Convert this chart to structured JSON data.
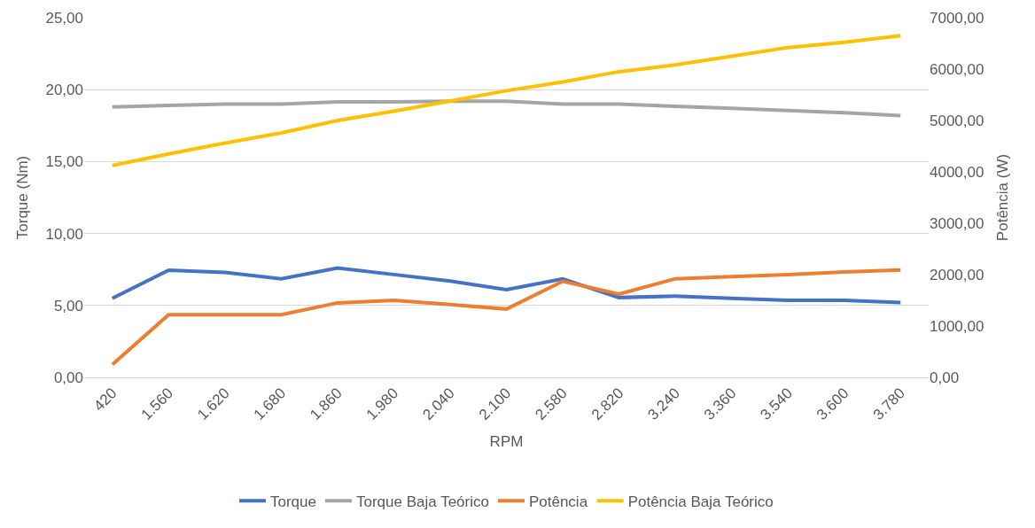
{
  "chart_data": {
    "type": "line",
    "xlabel": "RPM",
    "ylabel": "Torque (Nm)",
    "y2label": "Potência (W)",
    "categories": [
      "420",
      "1.560",
      "1.620",
      "1.680",
      "1.860",
      "1.980",
      "2.040",
      "2.100",
      "2.580",
      "2.820",
      "3.240",
      "3.360",
      "3.540",
      "3.600",
      "3.780"
    ],
    "series": [
      {
        "name": "Torque",
        "color": "#4472c4",
        "values": [
          5.5,
          7.45,
          7.3,
          6.85,
          7.6,
          7.15,
          6.7,
          6.1,
          6.85,
          5.55,
          5.65,
          5.5,
          5.35,
          5.35,
          5.2
        ]
      },
      {
        "name": "Torque Baja Teórico",
        "color": "#a5a5a5",
        "values": [
          18.8,
          18.9,
          19.0,
          19.0,
          19.15,
          19.15,
          19.2,
          19.2,
          19.0,
          19.0,
          18.85,
          18.7,
          18.55,
          18.4,
          18.2
        ]
      },
      {
        "name": "Potência",
        "color": "#ed7d31",
        "axis": "y2",
        "values": [
          250,
          1220,
          1220,
          1220,
          1450,
          1500,
          1420,
          1330,
          1870,
          1620,
          1920,
          1960,
          2000,
          2050,
          2090
        ]
      },
      {
        "name": "Potência Baja Teórico",
        "color": "#ffc000",
        "axis": "y2",
        "values": [
          4125,
          4350,
          4560,
          4760,
          5000,
          5180,
          5380,
          5580,
          5750,
          5950,
          6080,
          6250,
          6420,
          6520,
          6650
        ]
      }
    ],
    "ylim": [
      0,
      25
    ],
    "yticks": [
      {
        "value": 0,
        "label": "0,00"
      },
      {
        "value": 5,
        "label": "5,00"
      },
      {
        "value": 10,
        "label": "10,00"
      },
      {
        "value": 15,
        "label": "15,00"
      },
      {
        "value": 20,
        "label": "20,00"
      },
      {
        "value": 25,
        "label": "25,00"
      }
    ],
    "y2lim": [
      0,
      7000
    ],
    "y2ticks": [
      {
        "value": 0,
        "label": "0,00"
      },
      {
        "value": 1000,
        "label": "1000,00"
      },
      {
        "value": 2000,
        "label": "2000,00"
      },
      {
        "value": 3000,
        "label": "3000,00"
      },
      {
        "value": 4000,
        "label": "4000,00"
      },
      {
        "value": 5000,
        "label": "5000,00"
      },
      {
        "value": 6000,
        "label": "6000,00"
      },
      {
        "value": 7000,
        "label": "7000,00"
      }
    ],
    "grid": "y",
    "legend": "bottom",
    "marker": "none",
    "line_style": "solid"
  }
}
